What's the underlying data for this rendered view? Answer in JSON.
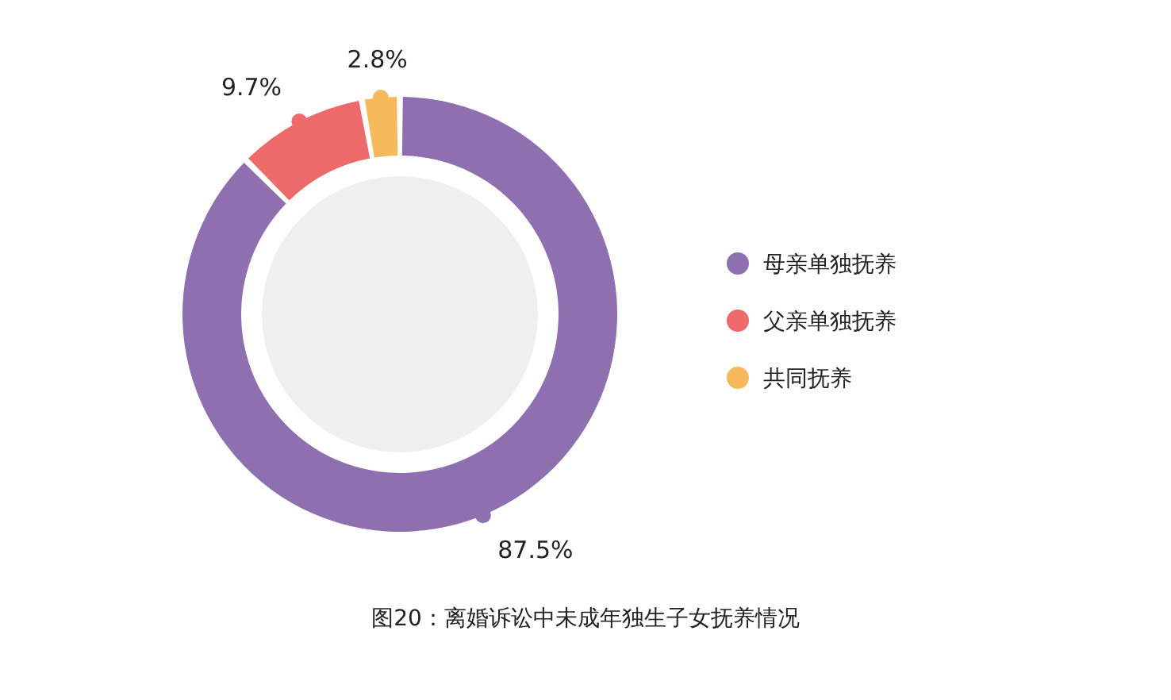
{
  "chart_data": {
    "type": "donut",
    "title": "图20：离婚诉讼中未成年独生子女抚养情况",
    "categories": [
      "母亲单独抚养",
      "父亲单独抚养",
      "共同抚养"
    ],
    "values": [
      87.5,
      9.7,
      2.8
    ],
    "value_labels": [
      "87.5%",
      "9.7%",
      "2.8%"
    ],
    "colors": [
      "#8e6fb0",
      "#ec6a6a",
      "#f6b95c"
    ],
    "legend": "right"
  }
}
